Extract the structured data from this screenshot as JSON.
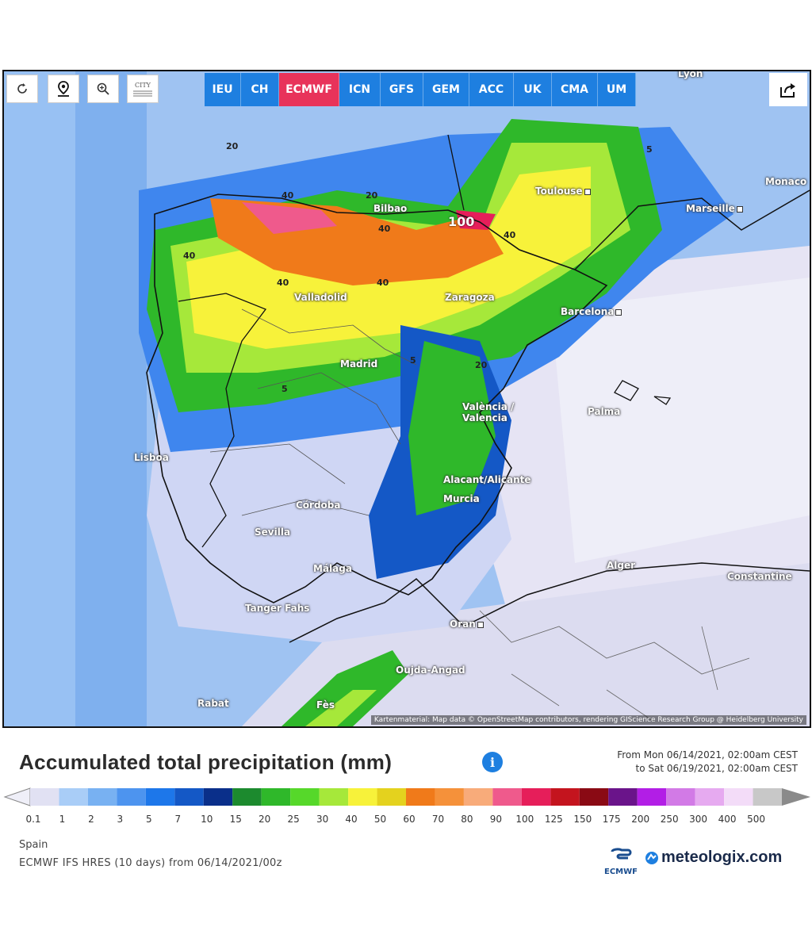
{
  "toolbar": {
    "reload_icon": "reload-icon",
    "location_icon": "location-pin-icon",
    "zoom_icon": "zoom-icon",
    "city_label": "CITY"
  },
  "models": [
    {
      "label": "IEU",
      "active": false
    },
    {
      "label": "CH",
      "active": false
    },
    {
      "label": "ECMWF",
      "active": true
    },
    {
      "label": "ICN",
      "active": false
    },
    {
      "label": "GFS",
      "active": false
    },
    {
      "label": "GEM",
      "active": false
    },
    {
      "label": "ACC",
      "active": false
    },
    {
      "label": "UK",
      "active": false
    },
    {
      "label": "CMA",
      "active": false
    },
    {
      "label": "UM",
      "active": false
    }
  ],
  "cities": [
    {
      "name": "Lyon"
    },
    {
      "name": "Toulouse"
    },
    {
      "name": "Marseille"
    },
    {
      "name": "Monaco"
    },
    {
      "name": "Bilbao"
    },
    {
      "name": "Valladolid"
    },
    {
      "name": "Zaragoza"
    },
    {
      "name": "Barcelona"
    },
    {
      "name": "Madrid"
    },
    {
      "name": "València / Valencia"
    },
    {
      "name": "Palma"
    },
    {
      "name": "Lisboa"
    },
    {
      "name": "Alacant/Alicante"
    },
    {
      "name": "Murcia"
    },
    {
      "name": "Córdoba"
    },
    {
      "name": "Sevilla"
    },
    {
      "name": "Málaga"
    },
    {
      "name": "Alger"
    },
    {
      "name": "Constantine"
    },
    {
      "name": "Tanger Fahs"
    },
    {
      "name": "Oran"
    },
    {
      "name": "Oujda-Angad"
    },
    {
      "name": "Rabat"
    },
    {
      "name": "Fès"
    }
  ],
  "contours": [
    "20",
    "40",
    "40",
    "100",
    "40",
    "40",
    "40",
    "40",
    "20",
    "5",
    "5",
    "20",
    "5"
  ],
  "attribution": "Kartenmaterial: Map data © OpenStreetMap contributors, rendering GIScience Research Group @ Heidelberg University",
  "title": "Accumulated total precipitation (mm)",
  "period": {
    "from": "From Mon 06/14/2021, 02:00am CEST",
    "to": "to Sat 06/19/2021, 02:00am CEST"
  },
  "legend": {
    "labels": [
      "0.1",
      "1",
      "2",
      "3",
      "5",
      "7",
      "10",
      "15",
      "20",
      "25",
      "30",
      "40",
      "50",
      "60",
      "70",
      "80",
      "90",
      "100",
      "125",
      "150",
      "175",
      "200",
      "250",
      "300",
      "400",
      "500"
    ],
    "colors": [
      "#e1e1f3",
      "#a9cdf7",
      "#78b1f2",
      "#4d94ef",
      "#1d77ea",
      "#1458c6",
      "#0a2f8a",
      "#1c8a2e",
      "#2fb82a",
      "#56d82a",
      "#a6e83a",
      "#f7f23a",
      "#e4d21e",
      "#f07a1a",
      "#f5913a",
      "#f8ab7a",
      "#ef5a8c",
      "#e61e5a",
      "#c4141e",
      "#8a0a14",
      "#6a148a",
      "#b21ee6",
      "#d27ae6",
      "#e6aaf0",
      "#f3dcf8",
      "#c8c8c8"
    ]
  },
  "region": "Spain",
  "model_run": "ECMWF IFS HRES (10 days) from 06/14/2021/00z",
  "brand": {
    "ecmwf_label": "ECMWF",
    "site": "meteologix.com"
  }
}
